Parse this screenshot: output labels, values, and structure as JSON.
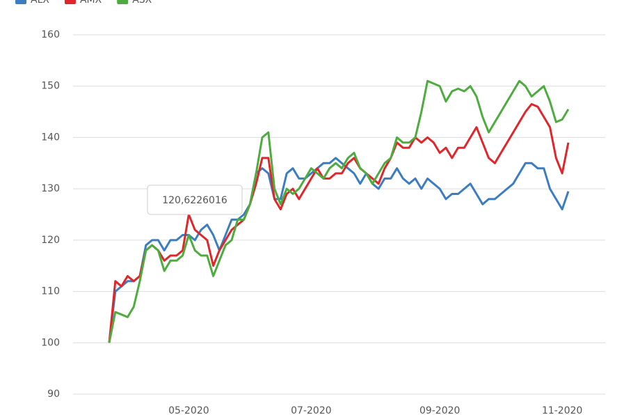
{
  "chart_data": {
    "type": "line",
    "annotation": "120,6226016",
    "categories": [
      null,
      null,
      null,
      null,
      null,
      null,
      null,
      null,
      null,
      null,
      null,
      null,
      null,
      "05-2020",
      null,
      null,
      null,
      null,
      null,
      null,
      null,
      null,
      null,
      null,
      null,
      null,
      null,
      null,
      null,
      null,
      null,
      null,
      null,
      "07-2020",
      null,
      null,
      null,
      null,
      null,
      null,
      null,
      null,
      null,
      null,
      null,
      null,
      null,
      null,
      null,
      null,
      null,
      null,
      null,
      null,
      "09-2020",
      null,
      null,
      null,
      null,
      null,
      null,
      null,
      null,
      null,
      null,
      null,
      null,
      null,
      null,
      null,
      null,
      null,
      null,
      null,
      "11-2020",
      null
    ],
    "series": [
      {
        "name": "ALX",
        "color": "#3b7dc1",
        "values": [
          100,
          110,
          111,
          112,
          112,
          113,
          119,
          120,
          120,
          118,
          120,
          120,
          121,
          121,
          120,
          122,
          123,
          121,
          118,
          121,
          124,
          124,
          125,
          127,
          133,
          134,
          133,
          128,
          128,
          133,
          134,
          132,
          132,
          133,
          134,
          135,
          135,
          136,
          135,
          134,
          133,
          131,
          133,
          131,
          130,
          132,
          132,
          134,
          132,
          131,
          132,
          130,
          132,
          131,
          130,
          128,
          129,
          129,
          130,
          131,
          129,
          127,
          128,
          128,
          129,
          130,
          131,
          133,
          135,
          135,
          134,
          134,
          130,
          128,
          126,
          129.5
        ]
      },
      {
        "name": "AMX",
        "color": "#e0262b",
        "values": [
          100,
          112,
          111,
          113,
          112,
          113,
          118,
          119,
          118,
          116,
          117,
          117,
          118,
          125,
          122,
          121,
          120,
          115,
          118,
          120,
          122,
          123,
          124,
          127,
          131,
          136,
          136,
          128,
          126,
          129,
          130,
          128,
          130,
          132,
          134,
          132,
          132,
          133,
          133,
          135,
          136,
          134,
          133,
          132,
          131,
          134,
          136,
          139,
          138,
          138,
          140,
          139,
          140,
          139,
          137,
          138,
          136,
          138,
          138,
          140,
          142,
          139,
          136,
          135,
          137,
          139,
          141,
          143,
          145,
          146.5,
          146,
          144,
          142,
          136,
          133,
          139
        ]
      },
      {
        "name": "ASX",
        "color": "#4cad3e",
        "values": [
          100,
          106,
          105.5,
          105,
          107,
          112,
          118,
          119,
          118,
          114,
          116,
          116,
          117,
          121,
          118,
          117,
          117,
          113,
          116,
          119,
          120,
          124,
          124,
          127,
          133,
          140,
          141,
          130,
          127,
          130,
          129,
          130,
          132,
          134,
          133,
          132,
          134,
          135,
          134,
          136,
          137,
          134,
          133,
          131,
          133,
          135,
          136,
          140,
          139,
          139,
          140,
          145,
          151,
          150.5,
          150,
          147,
          149,
          149.5,
          149,
          150,
          148,
          144,
          141,
          143,
          145,
          147,
          149,
          151,
          150,
          148,
          149,
          150,
          147,
          143,
          143.5,
          145.5
        ]
      }
    ],
    "ylim": [
      90,
      160
    ],
    "yticks": [
      90,
      100,
      110,
      120,
      130,
      140,
      150,
      160
    ],
    "grid": true
  }
}
